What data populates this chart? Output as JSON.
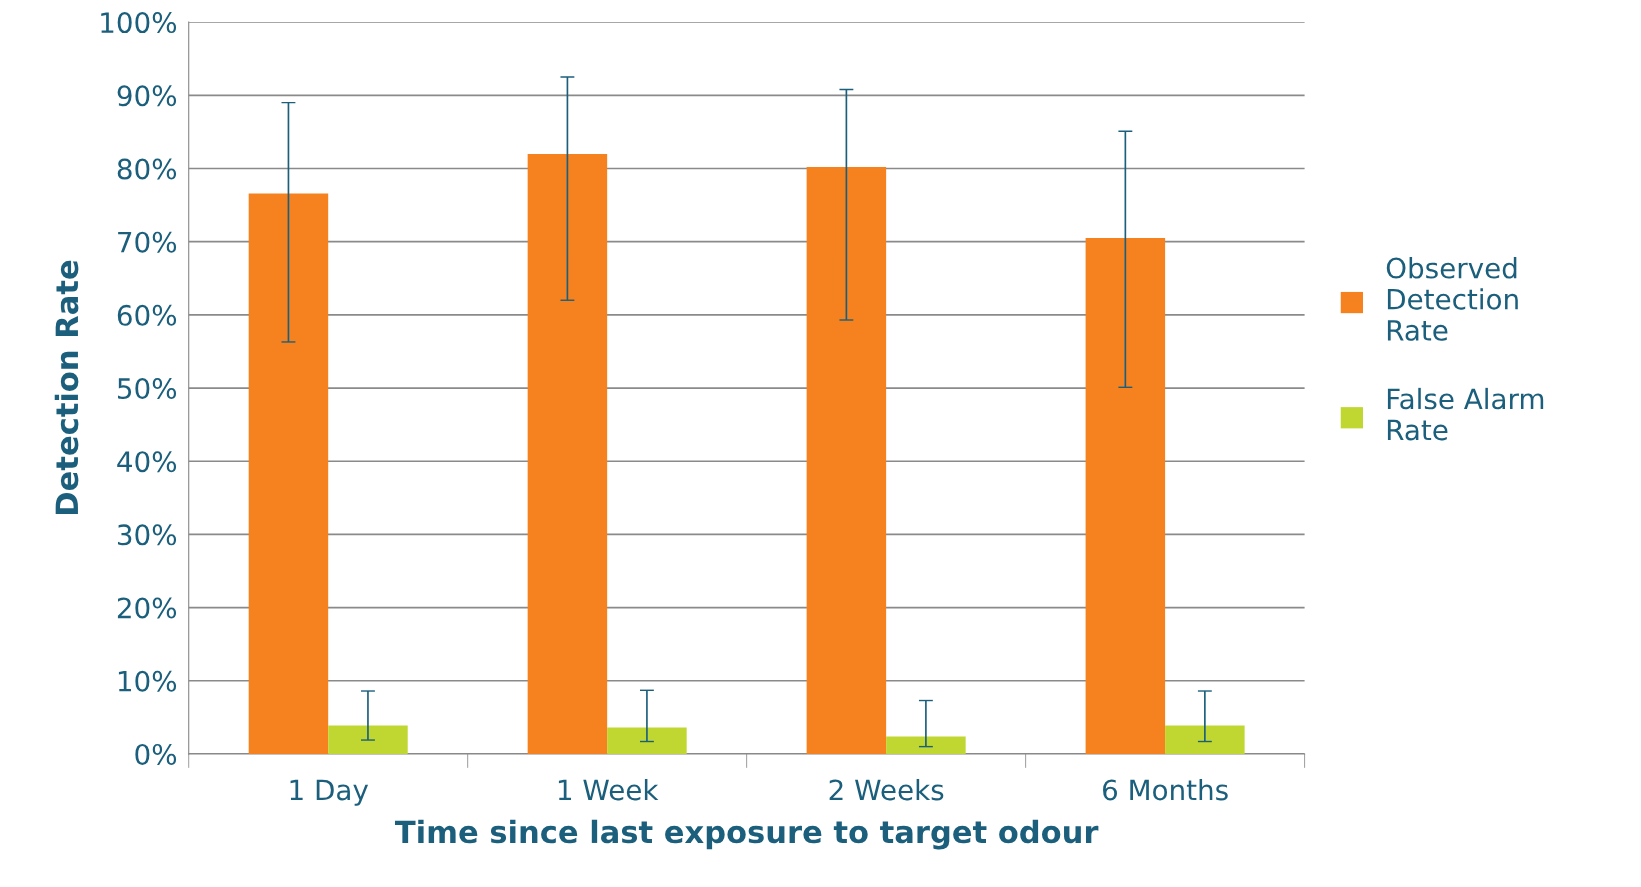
{
  "chart_data": {
    "type": "bar",
    "xlabel": "Time since last exposure to target odour",
    "ylabel": "Detection Rate",
    "categories": [
      "1 Day",
      "1 Week",
      "2 Weeks",
      "6 Months"
    ],
    "series": [
      {
        "name": "Observed Detection Rate",
        "color": "#f5821f",
        "values": [
          76.6,
          82,
          80.2,
          70.5
        ],
        "errors": [
          [
            56.3,
            89
          ],
          [
            62,
            92.5
          ],
          [
            59.3,
            90.8
          ],
          [
            50.1,
            85.1
          ]
        ]
      },
      {
        "name": "False Alarm Rate",
        "color": "#bfd730",
        "values": [
          3.9,
          3.6,
          2.4,
          3.9
        ],
        "errors": [
          [
            1.9,
            8.6
          ],
          [
            1.7,
            8.7
          ],
          [
            1.0,
            7.3
          ],
          [
            1.7,
            8.6
          ]
        ]
      }
    ],
    "ylim": [
      0,
      100
    ],
    "yticks": [
      {
        "value": 0,
        "label": "0%"
      },
      {
        "value": 10,
        "label": "10%"
      },
      {
        "value": 20,
        "label": "20%"
      },
      {
        "value": 30,
        "label": "30%"
      },
      {
        "value": 40,
        "label": "40%"
      },
      {
        "value": 50,
        "label": "50%"
      },
      {
        "value": 60,
        "label": "60%"
      },
      {
        "value": 70,
        "label": "70%"
      },
      {
        "value": 80,
        "label": "80%"
      },
      {
        "value": 90,
        "label": "90%"
      },
      {
        "value": 100,
        "label": "100%"
      }
    ],
    "grid": "y",
    "legend": "right"
  }
}
